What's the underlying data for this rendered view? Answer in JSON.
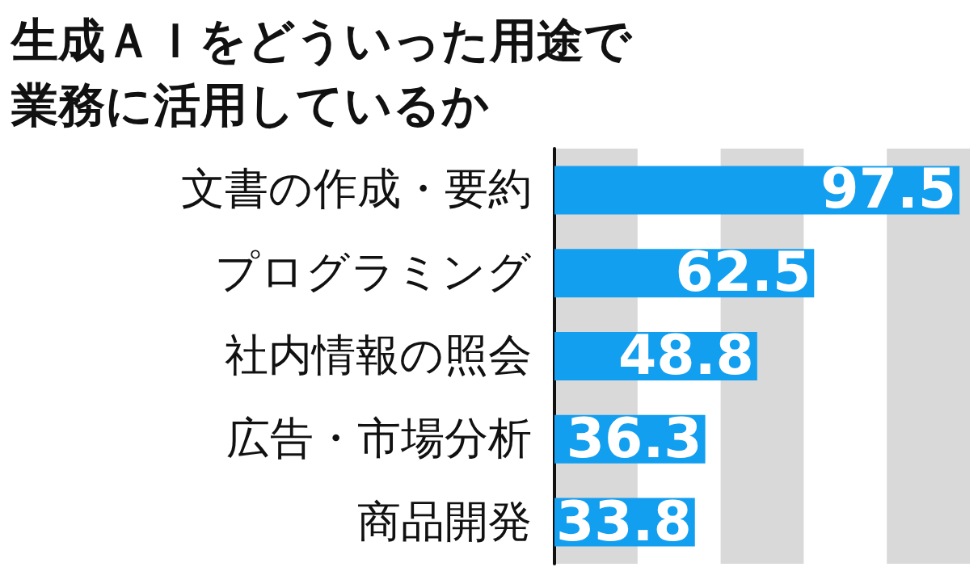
{
  "chart_data": {
    "type": "bar",
    "orientation": "horizontal",
    "title": "生成ＡＩをどういった用途で業務に活用しているか",
    "categories": [
      "文書の作成・要約",
      "プログラミング",
      "社内情報の照会",
      "広告・市場分析",
      "商品開発"
    ],
    "values": [
      97.5,
      62.5,
      48.8,
      36.3,
      33.8
    ],
    "color": "#139ff0",
    "xlim": [
      0,
      100
    ],
    "bands": [
      {
        "axis": "x",
        "from": 0,
        "to": 20,
        "color": "#d9d9d9"
      },
      {
        "axis": "x",
        "from": 40,
        "to": 60,
        "color": "#d9d9d9"
      },
      {
        "axis": "x",
        "from": 80,
        "to": 100,
        "color": "#d9d9d9"
      }
    ],
    "tick_labels": "y",
    "data_labels": true
  }
}
